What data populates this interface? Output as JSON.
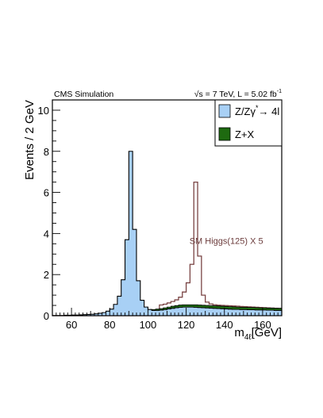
{
  "chart_data": {
    "type": "histogram",
    "header_left": "CMS Simulation",
    "header_right": "√s = 7 TeV, L = 5.02 fb",
    "header_right_sup": "-1",
    "xlabel": "m",
    "xlabel_sub": "4ℓ",
    "xlabel_unit": "[GeV]",
    "ylabel": "Events / 2 GeV",
    "xlim": [
      50,
      170
    ],
    "ylim": [
      0,
      10.5
    ],
    "bin_width": 2,
    "x_ticks": [
      60,
      80,
      100,
      120,
      140,
      160
    ],
    "y_ticks": [
      0,
      2,
      4,
      6,
      8,
      10
    ],
    "x_tick_labels": [
      "60",
      "80",
      "100",
      "120",
      "140",
      "160"
    ],
    "y_tick_labels": [
      "0",
      "2",
      "4",
      "6",
      "8",
      "10"
    ],
    "x_bins": [
      50,
      52,
      54,
      56,
      58,
      60,
      62,
      64,
      66,
      68,
      70,
      72,
      74,
      76,
      78,
      80,
      82,
      84,
      86,
      88,
      90,
      92,
      94,
      96,
      98,
      100,
      102,
      104,
      106,
      108,
      110,
      112,
      114,
      116,
      118,
      120,
      122,
      124,
      126,
      128,
      130,
      132,
      134,
      136,
      138,
      140,
      142,
      144,
      146,
      148,
      150,
      152,
      154,
      156,
      158,
      160,
      162,
      164,
      166,
      168
    ],
    "series": [
      {
        "name": "Z/Zγ*→ 4l",
        "style": "filled-step",
        "color": "#a8d0f5",
        "values": [
          0.01,
          0.01,
          0.01,
          0.02,
          0.02,
          0.03,
          0.03,
          0.04,
          0.05,
          0.06,
          0.07,
          0.09,
          0.12,
          0.15,
          0.22,
          0.32,
          0.55,
          0.95,
          1.75,
          3.7,
          8.0,
          4.2,
          1.7,
          0.75,
          0.42,
          0.3,
          0.26,
          0.26,
          0.27,
          0.3,
          0.33,
          0.36,
          0.39,
          0.41,
          0.42,
          0.42,
          0.42,
          0.41,
          0.4,
          0.39,
          0.38,
          0.37,
          0.36,
          0.35,
          0.34,
          0.33,
          0.32,
          0.31,
          0.31,
          0.3,
          0.3,
          0.29,
          0.29,
          0.28,
          0.28,
          0.28,
          0.27,
          0.27,
          0.26,
          0.26
        ]
      },
      {
        "name": "Z+X",
        "style": "filled-step",
        "color": "#1e6a10",
        "values": [
          0,
          0,
          0,
          0,
          0,
          0,
          0,
          0,
          0,
          0,
          0,
          0,
          0,
          0,
          0,
          0,
          0,
          0,
          0,
          0,
          0,
          0,
          0,
          0,
          0,
          0,
          0.04,
          0.06,
          0.07,
          0.08,
          0.09,
          0.1,
          0.1,
          0.11,
          0.11,
          0.11,
          0.11,
          0.12,
          0.12,
          0.12,
          0.12,
          0.12,
          0.12,
          0.12,
          0.12,
          0.12,
          0.12,
          0.12,
          0.11,
          0.11,
          0.11,
          0.11,
          0.11,
          0.11,
          0.1,
          0.1,
          0.1,
          0.1,
          0.1,
          0.1
        ]
      },
      {
        "name": "SM Higgs(125) X 5",
        "style": "line-step",
        "color": "#7a4444",
        "values": [
          0,
          0,
          0,
          0,
          0,
          0,
          0,
          0,
          0,
          0,
          0,
          0,
          0,
          0,
          0,
          0,
          0,
          0,
          0,
          0,
          0,
          0,
          0,
          0,
          0,
          0,
          0,
          0,
          0.52,
          0.56,
          0.62,
          0.69,
          0.77,
          0.9,
          1.15,
          1.6,
          2.5,
          6.5,
          2.9,
          1.0,
          0.66,
          0.57,
          0.53,
          0.51,
          0.5,
          0.49,
          0.48,
          0.47,
          0.46,
          0.45,
          0.44,
          0.43,
          0.42,
          0.41,
          0.4,
          0.39,
          0.38,
          0.37,
          0.36,
          0.35
        ]
      }
    ],
    "legend_entries": [
      {
        "label": "Z/Zγ",
        "label_sup": "*",
        "label_tail": "→ 4l",
        "color": "#a8d0f5"
      },
      {
        "label": "Z+X",
        "label_sup": "",
        "label_tail": "",
        "color": "#1e6a10"
      }
    ],
    "legend_placement": "top-right",
    "annotation": {
      "text": "SM Higgs(125) X 5",
      "x": 141,
      "y": 3.5
    },
    "grid": false
  }
}
